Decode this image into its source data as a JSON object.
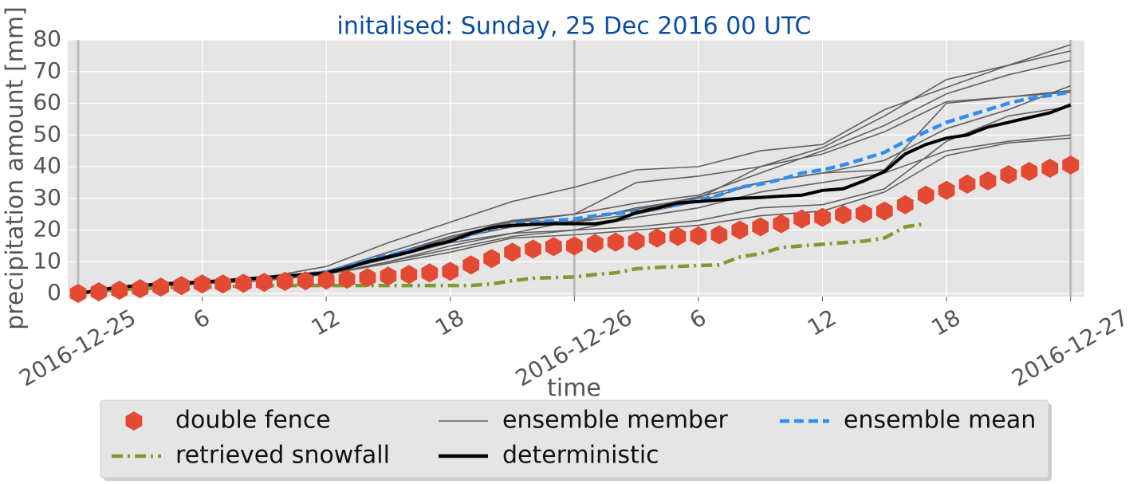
{
  "chart_data": {
    "type": "line",
    "title": "initalised: Sunday, 25 Dec 2016 00 UTC",
    "xlabel": "time",
    "ylabel": "precipitation amount [mm]",
    "x": [
      "2016-12-25 00:00",
      "2016-12-25 01:00",
      "2016-12-25 02:00",
      "2016-12-25 03:00",
      "2016-12-25 04:00",
      "2016-12-25 05:00",
      "2016-12-25 06:00",
      "2016-12-25 07:00",
      "2016-12-25 08:00",
      "2016-12-25 09:00",
      "2016-12-25 10:00",
      "2016-12-25 11:00",
      "2016-12-25 12:00",
      "2016-12-25 13:00",
      "2016-12-25 14:00",
      "2016-12-25 15:00",
      "2016-12-25 16:00",
      "2016-12-25 17:00",
      "2016-12-25 18:00",
      "2016-12-25 19:00",
      "2016-12-25 20:00",
      "2016-12-25 21:00",
      "2016-12-25 22:00",
      "2016-12-25 23:00",
      "2016-12-26 00:00",
      "2016-12-26 01:00",
      "2016-12-26 02:00",
      "2016-12-26 03:00",
      "2016-12-26 04:00",
      "2016-12-26 05:00",
      "2016-12-26 06:00",
      "2016-12-26 07:00",
      "2016-12-26 08:00",
      "2016-12-26 09:00",
      "2016-12-26 10:00",
      "2016-12-26 11:00",
      "2016-12-26 12:00",
      "2016-12-26 13:00",
      "2016-12-26 14:00",
      "2016-12-26 15:00",
      "2016-12-26 16:00",
      "2016-12-26 17:00",
      "2016-12-26 18:00",
      "2016-12-26 19:00",
      "2016-12-26 20:00",
      "2016-12-26 21:00",
      "2016-12-26 22:00",
      "2016-12-26 23:00",
      "2016-12-27 00:00"
    ],
    "series": [
      {
        "name": "double fence",
        "color": "#e24a33",
        "marker": "hexagon",
        "linestyle": "none",
        "values": [
          0,
          0.5,
          1,
          1.5,
          2,
          2.5,
          3,
          3,
          3.2,
          3.5,
          3.8,
          4,
          4.2,
          4.5,
          5,
          5.5,
          6,
          6.5,
          7,
          9,
          11,
          13,
          14,
          14.8,
          15,
          15.8,
          16.2,
          16.5,
          17.5,
          18,
          18.2,
          18.5,
          20,
          21,
          22,
          23.5,
          24,
          24.8,
          25.2,
          26,
          28,
          31,
          32.5,
          34.5,
          35.5,
          37.5,
          38.5,
          39.5,
          40.5
        ]
      },
      {
        "name": "retrieved snowfall",
        "color": "#7f9a2d",
        "linestyle": "dashdot",
        "values": [
          0,
          0.7,
          1.2,
          1.5,
          1.8,
          2,
          2,
          2.2,
          2.3,
          2.4,
          2.5,
          2.5,
          2.5,
          2.5,
          2.5,
          2.5,
          2.5,
          2.5,
          2.5,
          2.5,
          3,
          4,
          4.8,
          5,
          5.2,
          6,
          6.5,
          7.8,
          8.2,
          8.5,
          8.8,
          9,
          11.5,
          12.5,
          14.5,
          15,
          15.5,
          16,
          16.5,
          17.5,
          21,
          22,
          null,
          null,
          null,
          null,
          null,
          null,
          null
        ]
      },
      {
        "name": "deterministic",
        "color": "#000000",
        "linestyle": "solid",
        "values": [
          0,
          1,
          2,
          2.5,
          3,
          3.3,
          3.6,
          4,
          4.5,
          5,
          5.5,
          6,
          6.5,
          8,
          10,
          11.5,
          13,
          15,
          16.5,
          19,
          20.8,
          21.5,
          21.8,
          22,
          22,
          22,
          23,
          25.5,
          27,
          28.5,
          29,
          29.5,
          30,
          30.3,
          30.7,
          31,
          32.5,
          33,
          35.5,
          38.5,
          44,
          47,
          49,
          50,
          52.5,
          54,
          55.5,
          57,
          59.5
        ]
      },
      {
        "name": "ensemble mean",
        "color": "#2e8ff0",
        "linestyle": "dashed",
        "values": [
          0,
          1,
          2,
          2.5,
          3,
          3.3,
          3.6,
          4,
          4.5,
          5,
          5.5,
          6,
          6.8,
          8.5,
          10.5,
          12,
          13.5,
          15,
          16.5,
          18.5,
          20.5,
          21.8,
          22.5,
          23,
          23.5,
          24.5,
          25.2,
          25.8,
          27,
          28,
          29.5,
          31,
          33.5,
          34.5,
          36,
          38,
          39,
          40.5,
          42.5,
          44.5,
          48,
          51,
          54,
          56,
          58,
          60,
          61.5,
          62.5,
          63.5
        ]
      }
    ],
    "ensemble": {
      "name": "ensemble member",
      "color": "#606060",
      "x": [
        "2016-12-25 00:00",
        "2016-12-25 03:00",
        "2016-12-25 06:00",
        "2016-12-25 09:00",
        "2016-12-25 12:00",
        "2016-12-25 15:00",
        "2016-12-25 18:00",
        "2016-12-25 21:00",
        "2016-12-26 00:00",
        "2016-12-26 03:00",
        "2016-12-26 06:00",
        "2016-12-26 09:00",
        "2016-12-26 12:00",
        "2016-12-26 15:00",
        "2016-12-26 18:00",
        "2016-12-26 21:00",
        "2016-12-27 00:00"
      ],
      "members": [
        [
          0,
          2,
          3.5,
          5,
          8.5,
          16,
          22.5,
          29,
          33.5,
          39,
          40,
          45,
          47,
          58,
          65,
          72,
          78.5
        ],
        [
          0,
          2,
          3.5,
          5,
          7,
          13,
          19,
          23,
          25,
          35,
          37,
          40,
          46,
          56,
          67.5,
          72,
          76.5
        ],
        [
          0,
          2,
          3.5,
          4.5,
          7,
          12,
          18,
          22.5,
          25,
          28.5,
          31,
          38,
          45,
          53,
          63,
          69,
          73.5
        ],
        [
          0,
          2,
          3.5,
          5,
          6.5,
          11,
          16,
          19,
          23,
          26.5,
          30.5,
          35,
          38,
          42,
          52,
          58,
          65.5
        ],
        [
          0,
          2,
          3,
          4.5,
          6.5,
          11,
          17,
          21,
          22.5,
          25,
          29,
          35,
          38,
          39,
          60,
          62,
          63.5
        ],
        [
          0,
          2,
          3,
          4.5,
          6,
          10,
          15,
          19,
          20,
          21,
          23,
          27,
          28,
          33,
          48,
          56,
          59
        ],
        [
          0,
          2,
          3,
          4.5,
          6,
          10,
          14,
          18,
          20,
          24,
          27,
          32,
          35,
          38,
          45,
          48,
          50
        ],
        [
          0,
          2,
          3,
          4,
          6,
          9.5,
          13,
          17.5,
          18.5,
          20,
          21.5,
          24.5,
          26,
          32,
          43.5,
          47.5,
          49
        ],
        [
          0,
          2,
          3,
          4.5,
          6.5,
          12,
          17.5,
          23,
          22.5,
          27,
          30,
          40,
          44,
          51,
          60.5,
          62,
          64
        ]
      ]
    },
    "xlim": [
      "2016-12-24 23:30",
      "2016-12-27 00:40"
    ],
    "xticks": [
      {
        "value": "2016-12-25 00:00",
        "label": "2016-12-25"
      },
      {
        "value": "2016-12-25 06:00",
        "label": "6"
      },
      {
        "value": "2016-12-25 12:00",
        "label": "12"
      },
      {
        "value": "2016-12-25 18:00",
        "label": "18"
      },
      {
        "value": "2016-12-26 00:00",
        "label": "2016-12-26"
      },
      {
        "value": "2016-12-26 06:00",
        "label": "6"
      },
      {
        "value": "2016-12-26 12:00",
        "label": "12"
      },
      {
        "value": "2016-12-26 18:00",
        "label": "18"
      },
      {
        "value": "2016-12-27 00:00",
        "label": "2016-12-27"
      }
    ],
    "vlines": [
      "2016-12-25 00:00",
      "2016-12-26 00:00",
      "2016-12-27 00:00"
    ],
    "ylim": [
      -1,
      80
    ],
    "yticks": [
      0,
      10,
      20,
      30,
      40,
      50,
      60,
      70,
      80
    ],
    "grid": true,
    "legend": "below"
  }
}
